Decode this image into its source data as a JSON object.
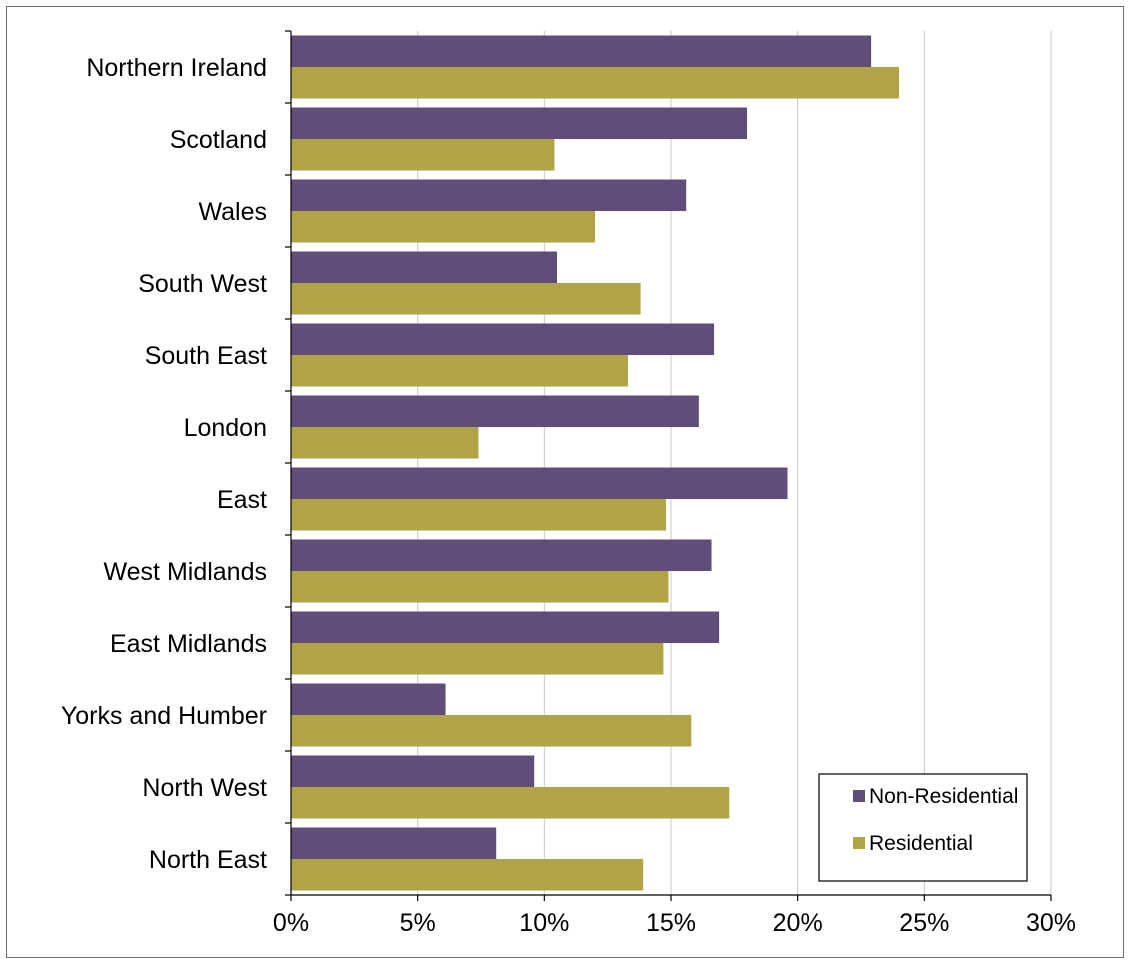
{
  "chart_data": {
    "type": "bar",
    "orientation": "horizontal",
    "categories": [
      "Northern Ireland",
      "Scotland",
      "Wales",
      "South West",
      "South East",
      "London",
      "East",
      "West Midlands",
      "East Midlands",
      "Yorks and Humber",
      "North West",
      "North East"
    ],
    "series": [
      {
        "name": "Non-Residential",
        "color": "#604d7b",
        "values": [
          22.9,
          18.0,
          15.6,
          10.5,
          16.7,
          16.1,
          19.6,
          16.6,
          16.9,
          6.1,
          9.6,
          8.1
        ]
      },
      {
        "name": "Residential",
        "color": "#b0a447",
        "values": [
          24.0,
          10.4,
          12.0,
          13.8,
          13.3,
          7.4,
          14.8,
          14.9,
          14.7,
          15.8,
          17.3,
          13.9
        ]
      }
    ],
    "xlim": [
      0,
      30
    ],
    "xticks": [
      0,
      5,
      10,
      15,
      20,
      25,
      30
    ],
    "xtick_labels": [
      "0%",
      "5%",
      "10%",
      "15%",
      "20%",
      "25%",
      "30%"
    ],
    "grid": "vertical",
    "legend_position": "bottom-right",
    "title": "",
    "xlabel": "",
    "ylabel": ""
  }
}
